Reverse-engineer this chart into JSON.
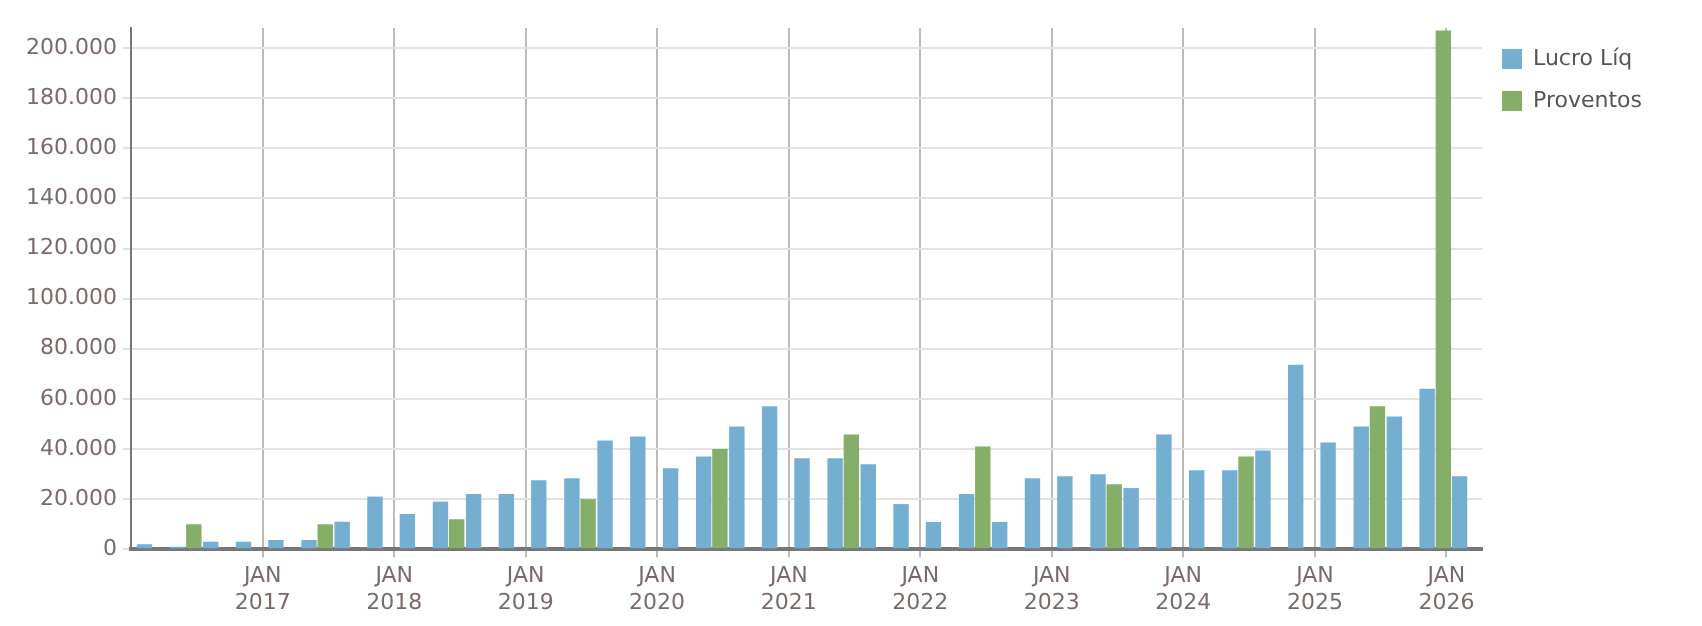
{
  "chart_data": {
    "type": "bar",
    "x": [
      "2016-03",
      "2016-06",
      "2016-09",
      "2016-12",
      "2017-03",
      "2017-06",
      "2017-09",
      "2017-12",
      "2018-03",
      "2018-06",
      "2018-09",
      "2018-12",
      "2019-03",
      "2019-06",
      "2019-09",
      "2019-12",
      "2020-03",
      "2020-06",
      "2020-09",
      "2020-12",
      "2021-03",
      "2021-06",
      "2021-09",
      "2021-12",
      "2022-03",
      "2022-06",
      "2022-09",
      "2022-12",
      "2023-03",
      "2023-06",
      "2023-09",
      "2023-12",
      "2024-03",
      "2024-06",
      "2024-09",
      "2024-12",
      "2025-03",
      "2025-06",
      "2025-09",
      "2025-12",
      "2026-03"
    ],
    "series": [
      {
        "name": "Lucro Líq",
        "color": "#74afd2",
        "values": [
          2000,
          1000,
          3000,
          3000,
          3700,
          3700,
          11000,
          21000,
          14000,
          19000,
          22000,
          22000,
          27500,
          28300,
          43400,
          45000,
          32300,
          37000,
          49000,
          57000,
          36300,
          36300,
          33900,
          18000,
          10900,
          22000,
          10900,
          28300,
          29100,
          29900,
          24400,
          45800,
          31500,
          31500,
          39400,
          73600,
          42600,
          49000,
          53000,
          64000,
          29100
        ]
      },
      {
        "name": "Proventos",
        "color": "#85ae68",
        "values": [
          0,
          10000,
          0,
          0,
          0,
          10000,
          0,
          0,
          0,
          12000,
          0,
          0,
          0,
          20000,
          0,
          0,
          0,
          40000,
          0,
          0,
          0,
          45800,
          0,
          0,
          0,
          41000,
          0,
          0,
          0,
          25900,
          0,
          0,
          0,
          37000,
          0,
          0,
          0,
          57000,
          0,
          207000,
          0
        ]
      }
    ],
    "xlim": [
      "2016-01",
      "2026-04-10"
    ],
    "xticks": [
      {
        "value": "2017-01",
        "label": "JAN\n2017"
      },
      {
        "value": "2018-01",
        "label": "JAN\n2018"
      },
      {
        "value": "2019-01",
        "label": "JAN\n2019"
      },
      {
        "value": "2020-01",
        "label": "JAN\n2020"
      },
      {
        "value": "2021-01",
        "label": "JAN\n2021"
      },
      {
        "value": "2022-01",
        "label": "JAN\n2022"
      },
      {
        "value": "2023-01",
        "label": "JAN\n2023"
      },
      {
        "value": "2024-01",
        "label": "JAN\n2024"
      },
      {
        "value": "2025-01",
        "label": "JAN\n2025"
      },
      {
        "value": "2026-01",
        "label": "JAN\n2026"
      }
    ],
    "ylim": [
      0,
      208000
    ],
    "yticks": [
      0,
      {
        "value": 20000,
        "label": "20.000"
      },
      {
        "value": 40000,
        "label": "40.000"
      },
      {
        "value": 60000,
        "label": "60.000"
      },
      {
        "value": 80000,
        "label": "80.000"
      },
      {
        "value": 100000,
        "label": "100.000"
      },
      {
        "value": 120000,
        "label": "120.000"
      },
      {
        "value": 140000,
        "label": "140.000"
      },
      {
        "value": 160000,
        "label": "160.000"
      },
      {
        "value": 180000,
        "label": "180.000"
      },
      {
        "value": 200000,
        "label": "200.000"
      }
    ],
    "grid": true,
    "legend": "top right"
  }
}
